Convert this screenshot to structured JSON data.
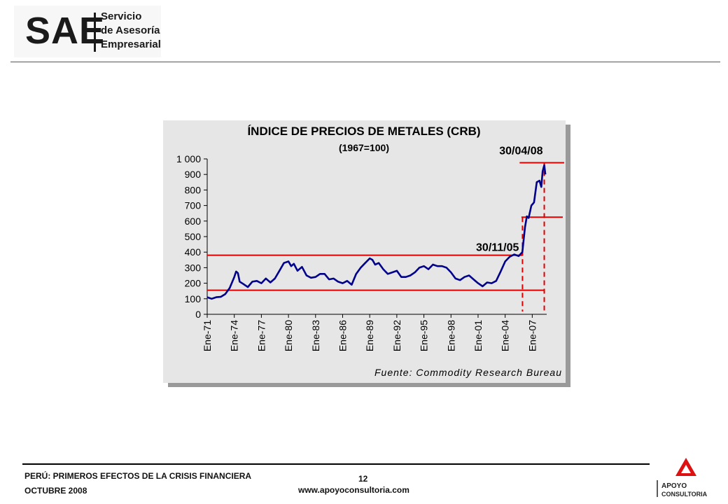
{
  "header": {
    "logo_mark": "SAE",
    "logo_line1": "Servicio",
    "logo_line2": "de Asesoría",
    "logo_line3": "Empresarial"
  },
  "footer": {
    "title": "PERÚ: PRIMEROS EFECTOS DE LA CRISIS FINANCIERA",
    "date": "OCTUBRE 2008",
    "page_number": "12",
    "url": "www.apoyoconsultoria.com",
    "logo_line1": "APOYO",
    "logo_line2": "CONSULTORIA"
  },
  "colors": {
    "series": "#00008b",
    "annotation": "#e00000",
    "panel": "#e6e6e6",
    "shadow": "#9a9a9a"
  },
  "chart_data": {
    "type": "line",
    "title": "ÍNDICE DE PRECIOS DE METALES (CRB)",
    "subtitle": "(1967=100)",
    "source": "Fuente: Commodity Research Bureau",
    "ylim": [
      0,
      1000
    ],
    "yticks": [
      0,
      100,
      200,
      300,
      400,
      500,
      600,
      700,
      800,
      900,
      1000
    ],
    "ytick_labels": [
      "0",
      "100",
      "200",
      "300",
      "400",
      "500",
      "600",
      "700",
      "800",
      "900",
      "1 000"
    ],
    "xlim": [
      1971,
      2008.6
    ],
    "xticks": [
      1971,
      1974,
      1977,
      1980,
      1983,
      1986,
      1989,
      1992,
      1995,
      1998,
      2001,
      2004,
      2007
    ],
    "xtick_labels": [
      "Ene-71",
      "Ene-74",
      "Ene-77",
      "Ene-80",
      "Ene-83",
      "Ene-86",
      "Ene-89",
      "Ene-92",
      "Ene-95",
      "Ene-98",
      "Ene-01",
      "Ene-04",
      "Ene-07"
    ],
    "grid": false,
    "series": [
      {
        "x": [
          1971.0,
          1971.5,
          1972.0,
          1972.5,
          1973.0,
          1973.5,
          1974.0,
          1974.2,
          1974.4,
          1974.6,
          1975.0,
          1975.5,
          1976.0,
          1976.5,
          1977.0,
          1977.5,
          1978.0,
          1978.5,
          1979.0,
          1979.5,
          1980.0,
          1980.3,
          1980.6,
          1981.0,
          1981.5,
          1982.0,
          1982.5,
          1983.0,
          1983.5,
          1984.0,
          1984.5,
          1985.0,
          1985.5,
          1986.0,
          1986.5,
          1987.0,
          1987.5,
          1988.0,
          1988.5,
          1989.0,
          1989.3,
          1989.6,
          1990.0,
          1990.5,
          1991.0,
          1991.5,
          1992.0,
          1992.5,
          1993.0,
          1993.5,
          1994.0,
          1994.5,
          1995.0,
          1995.5,
          1996.0,
          1996.5,
          1997.0,
          1997.5,
          1998.0,
          1998.5,
          1999.0,
          1999.5,
          2000.0,
          2000.5,
          2001.0,
          2001.5,
          2002.0,
          2002.5,
          2003.0,
          2003.5,
          2004.0,
          2004.5,
          2005.0,
          2005.5,
          2005.9,
          2006.2,
          2006.4,
          2006.6,
          2006.9,
          2007.2,
          2007.5,
          2007.8,
          2008.0,
          2008.15,
          2008.33,
          2008.45
        ],
        "values": [
          110,
          100,
          110,
          112,
          130,
          170,
          240,
          275,
          265,
          210,
          195,
          175,
          210,
          215,
          200,
          230,
          205,
          230,
          280,
          330,
          340,
          310,
          325,
          280,
          305,
          250,
          235,
          240,
          260,
          260,
          225,
          230,
          210,
          200,
          215,
          190,
          260,
          300,
          330,
          360,
          350,
          320,
          330,
          290,
          260,
          270,
          280,
          240,
          240,
          250,
          270,
          300,
          310,
          290,
          320,
          310,
          310,
          300,
          270,
          230,
          220,
          240,
          250,
          225,
          200,
          180,
          205,
          200,
          215,
          275,
          340,
          370,
          385,
          375,
          400,
          560,
          630,
          620,
          700,
          720,
          850,
          860,
          820,
          920,
          960,
          900
        ]
      }
    ],
    "annotations": [
      {
        "label": "30/11/05",
        "x": 2005.92,
        "y": 380
      },
      {
        "label": "30/04/08",
        "x": 2008.33,
        "y": 975
      }
    ],
    "reference_lines": [
      {
        "axis": "y",
        "value": 380
      },
      {
        "axis": "y",
        "value": 155
      },
      {
        "axis": "y",
        "value": 975
      },
      {
        "axis": "y",
        "value": 625
      },
      {
        "axis": "x",
        "value": 2005.92
      },
      {
        "axis": "x",
        "value": 2008.33
      }
    ]
  }
}
